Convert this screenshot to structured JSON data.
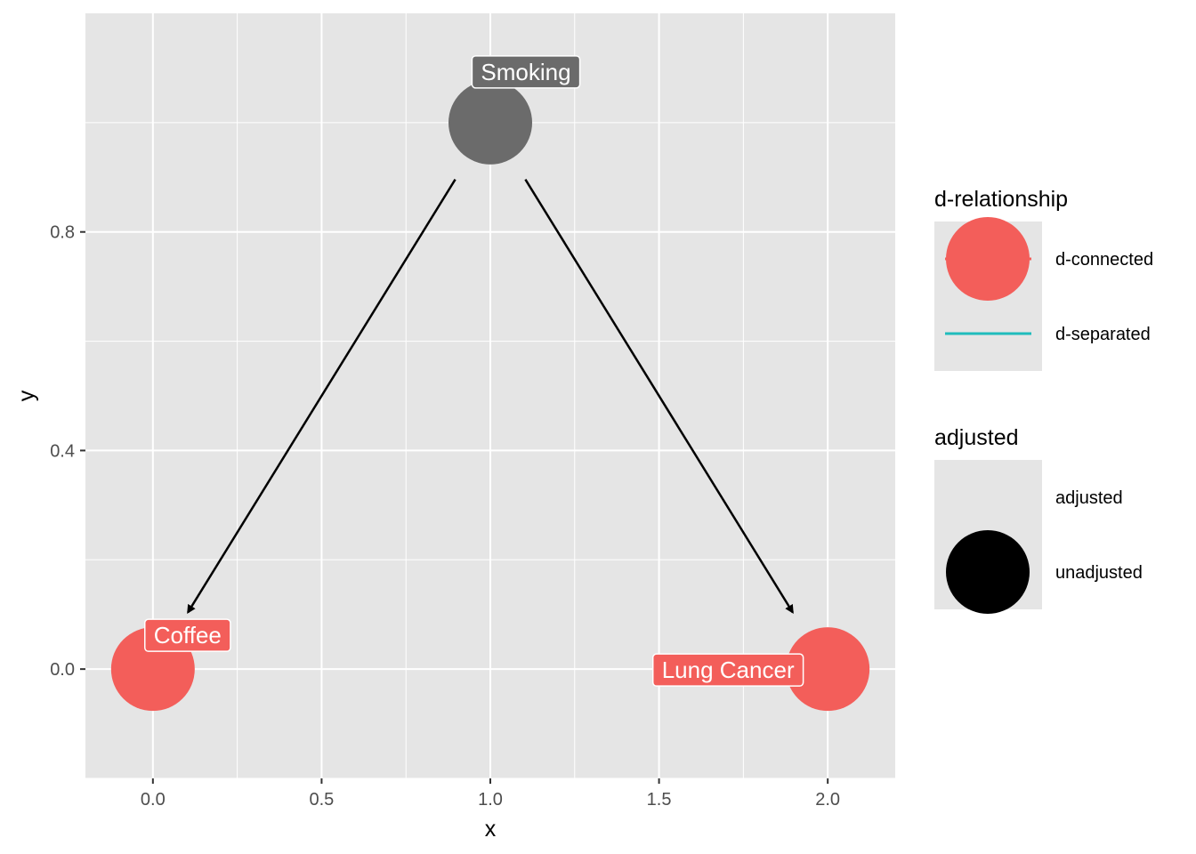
{
  "chart_data": {
    "type": "scatter",
    "subtype": "dag",
    "xlabel": "x",
    "ylabel": "y",
    "xlim": [
      -0.2,
      2.2
    ],
    "ylim": [
      -0.2,
      1.2
    ],
    "x_ticks": [
      0.0,
      0.5,
      1.0,
      1.5,
      2.0
    ],
    "x_tick_labels": [
      "0.0",
      "0.5",
      "1.0",
      "1.5",
      "2.0"
    ],
    "y_ticks": [
      0.0,
      0.4,
      0.8
    ],
    "y_tick_labels": [
      "0.0",
      "0.4",
      "0.8"
    ],
    "grid": true,
    "nodes": [
      {
        "name": "Smoking",
        "x": 1.0,
        "y": 1.0,
        "status": "adjusted",
        "color": "#6b6b6b"
      },
      {
        "name": "Coffee",
        "x": 0.0,
        "y": 0.0,
        "status": "d-connected",
        "color": "#f35e5a"
      },
      {
        "name": "Lung Cancer",
        "x": 2.0,
        "y": 0.0,
        "status": "d-connected",
        "color": "#f35e5a"
      }
    ],
    "edges": [
      {
        "from": "Smoking",
        "to": "Coffee"
      },
      {
        "from": "Smoking",
        "to": "Lung Cancer"
      }
    ],
    "legends": [
      {
        "title": "d-relationship",
        "items": [
          {
            "label": "d-connected",
            "color": "#f35e5a",
            "shape": "circle"
          },
          {
            "label": "d-separated",
            "color": "#1fbcbc",
            "shape": "line"
          }
        ]
      },
      {
        "title": "adjusted",
        "items": [
          {
            "label": "adjusted",
            "color": "#000000",
            "shape": "none"
          },
          {
            "label": "unadjusted",
            "color": "#000000",
            "shape": "circle"
          }
        ]
      }
    ],
    "legend_position": "right",
    "colors": {
      "panel_background": "#e5e5e5",
      "grid": "#ffffff",
      "d_connected": "#f35e5a",
      "d_separated": "#1fbcbc",
      "adjusted_node": "#6b6b6b",
      "edge": "#000000"
    }
  }
}
